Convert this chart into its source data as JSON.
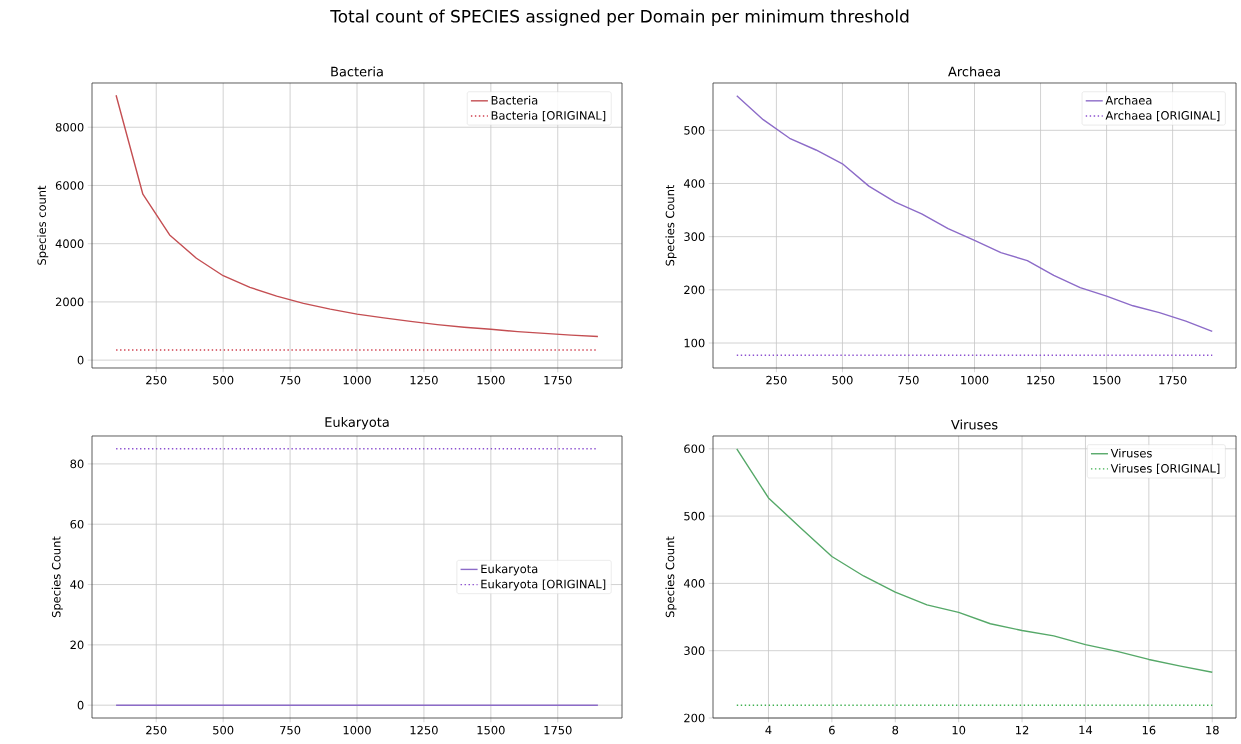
{
  "chart_data": [
    {
      "type": "line",
      "title": "Bacteria",
      "ylabel": "Species count",
      "annotations": [
        "Total count of SPECIES assigned per Domain per minimum threshold"
      ],
      "x": [
        100,
        200,
        300,
        400,
        500,
        600,
        700,
        800,
        900,
        1000,
        1100,
        1200,
        1300,
        1400,
        1500,
        1600,
        1700,
        1800,
        1900
      ],
      "series": [
        {
          "name": "Bacteria",
          "color": "#c44e52",
          "line_style": "solid",
          "values": [
            9100,
            5700,
            4300,
            3500,
            2900,
            2500,
            2200,
            1950,
            1750,
            1580,
            1450,
            1330,
            1220,
            1130,
            1060,
            980,
            920,
            860,
            810
          ]
        },
        {
          "name": "Bacteria [ORIGINAL]",
          "color": "#d0404f",
          "line_style": "dotted",
          "values": [
            350,
            350,
            350,
            350,
            350,
            350,
            350,
            350,
            350,
            350,
            350,
            350,
            350,
            350,
            350,
            350,
            350,
            350,
            350
          ]
        }
      ],
      "xlim": [
        10,
        1990
      ],
      "ylim": [
        -270,
        9520
      ],
      "xticks": [
        250,
        500,
        750,
        1000,
        1250,
        1500,
        1750
      ],
      "yticks": [
        0,
        2000,
        4000,
        6000,
        8000
      ],
      "grid": true,
      "legend": "top right"
    },
    {
      "type": "line",
      "title": "Archaea",
      "ylabel": "Species Count",
      "x": [
        100,
        200,
        300,
        400,
        500,
        600,
        700,
        800,
        900,
        1000,
        1100,
        1200,
        1300,
        1400,
        1500,
        1600,
        1700,
        1800,
        1900
      ],
      "series": [
        {
          "name": "Archaea",
          "color": "#8c6bc8",
          "line_style": "solid",
          "values": [
            565,
            520,
            485,
            463,
            437,
            395,
            365,
            343,
            315,
            293,
            270,
            255,
            227,
            204,
            188,
            170,
            157,
            141,
            122
          ]
        },
        {
          "name": "Archaea [ORIGINAL]",
          "color": "#8c50d0",
          "line_style": "dotted",
          "values": [
            77,
            77,
            77,
            77,
            77,
            77,
            77,
            77,
            77,
            77,
            77,
            77,
            77,
            77,
            77,
            77,
            77,
            77,
            77
          ]
        }
      ],
      "xlim": [
        10,
        1990
      ],
      "ylim": [
        53,
        589
      ],
      "xticks": [
        250,
        500,
        750,
        1000,
        1250,
        1500,
        1750
      ],
      "yticks": [
        100,
        200,
        300,
        400,
        500
      ],
      "grid": true,
      "legend": "top right"
    },
    {
      "type": "line",
      "title": "Eukaryota",
      "ylabel": "Species Count",
      "x": [
        100,
        200,
        300,
        400,
        500,
        600,
        700,
        800,
        900,
        1000,
        1100,
        1200,
        1300,
        1400,
        1500,
        1600,
        1700,
        1800,
        1900
      ],
      "series": [
        {
          "name": "Eukaryota",
          "color": "#8c6bc8",
          "line_style": "solid",
          "values": [
            0,
            0,
            0,
            0,
            0,
            0,
            0,
            0,
            0,
            0,
            0,
            0,
            0,
            0,
            0,
            0,
            0,
            0,
            0
          ]
        },
        {
          "name": "Eukaryota [ORIGINAL]",
          "color": "#8c50d0",
          "line_style": "dotted",
          "values": [
            85,
            85,
            85,
            85,
            85,
            85,
            85,
            85,
            85,
            85,
            85,
            85,
            85,
            85,
            85,
            85,
            85,
            85,
            85
          ]
        }
      ],
      "xlim": [
        10,
        1990
      ],
      "ylim": [
        -4.25,
        89.25
      ],
      "xticks": [
        250,
        500,
        750,
        1000,
        1250,
        1500,
        1750
      ],
      "yticks": [
        0,
        20,
        40,
        60,
        80
      ],
      "grid": true,
      "legend": "right"
    },
    {
      "type": "line",
      "title": "Viruses",
      "ylabel": "Species Count",
      "x": [
        3,
        4,
        5,
        6,
        7,
        8,
        9,
        10,
        11,
        12,
        13,
        14,
        15,
        16,
        17,
        18
      ],
      "series": [
        {
          "name": "Viruses",
          "color": "#55a868",
          "line_style": "solid",
          "values": [
            600,
            527,
            483,
            440,
            411,
            387,
            368,
            357,
            340,
            330,
            322,
            309,
            299,
            287,
            277,
            268
          ]
        },
        {
          "name": "Viruses [ORIGINAL]",
          "color": "#3fb050",
          "line_style": "dotted",
          "values": [
            219,
            219,
            219,
            219,
            219,
            219,
            219,
            219,
            219,
            219,
            219,
            219,
            219,
            219,
            219,
            219
          ]
        }
      ],
      "xlim": [
        2.25,
        18.75
      ],
      "ylim": [
        200,
        619
      ],
      "xticks": [
        4,
        6,
        8,
        10,
        12,
        14,
        16,
        18
      ],
      "yticks": [
        200,
        300,
        400,
        500,
        600
      ],
      "grid": true,
      "legend": "top right"
    }
  ]
}
